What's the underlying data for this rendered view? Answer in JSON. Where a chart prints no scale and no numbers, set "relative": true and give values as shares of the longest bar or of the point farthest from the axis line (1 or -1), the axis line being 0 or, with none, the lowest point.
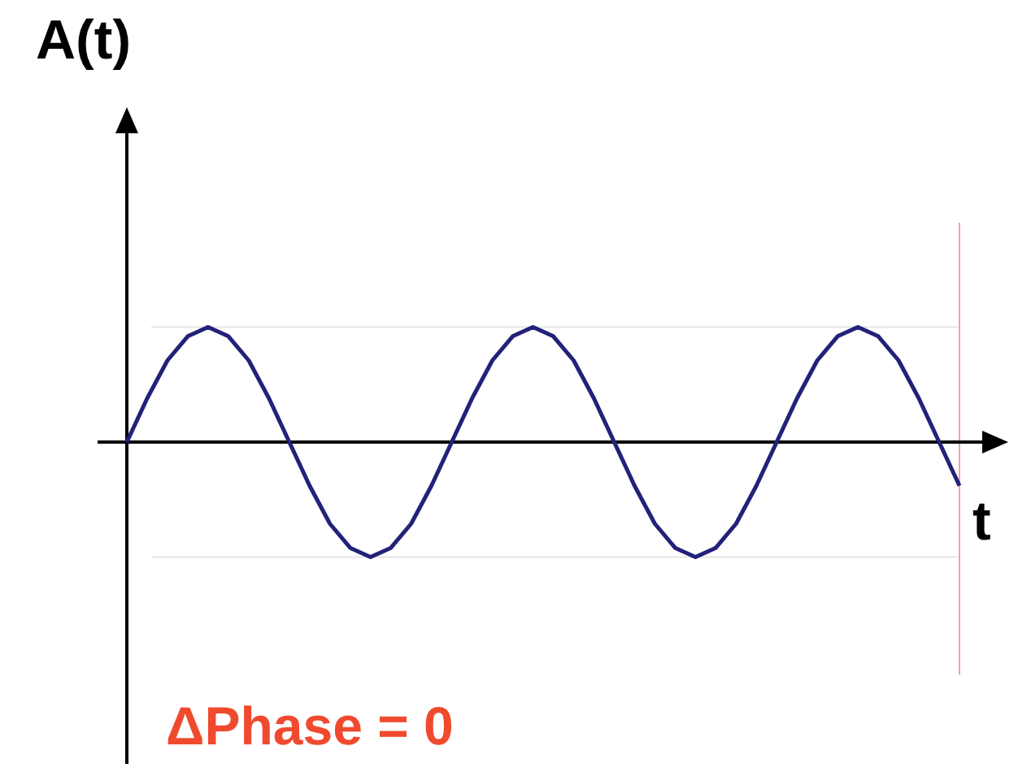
{
  "chart_data": {
    "type": "line",
    "relative": true,
    "xlabel": "t",
    "ylabel": "A(t)",
    "annotations": [
      "ΔPhase = 0"
    ],
    "categories": [
      null,
      null,
      null,
      null,
      null,
      null,
      null,
      null,
      null,
      null,
      null,
      null,
      null,
      null,
      null,
      null,
      null,
      null,
      null,
      null,
      null,
      null,
      null,
      null,
      null,
      null,
      null,
      null,
      null,
      null,
      null,
      null,
      null,
      null,
      null,
      null,
      null,
      null,
      null,
      null,
      null,
      null
    ],
    "series": [
      {
        "color": "#22227a",
        "values": [
          0,
          0.38,
          0.71,
          0.92,
          1,
          0.92,
          0.71,
          0.38,
          0,
          -0.38,
          -0.71,
          -0.92,
          -1,
          -0.92,
          -0.71,
          -0.38,
          0,
          0.38,
          0.71,
          0.92,
          1,
          0.92,
          0.71,
          0.38,
          0,
          -0.38,
          -0.71,
          -0.92,
          -1,
          -0.92,
          -0.71,
          -0.38,
          0,
          0.38,
          0.71,
          0.92,
          1,
          0.92,
          0.71,
          0.38,
          0,
          -0.38
        ]
      }
    ],
    "ref_lines": [
      {
        "axis": "y",
        "value": 1,
        "color": "#e6e6e6"
      },
      {
        "axis": "y",
        "value": -1,
        "color": "#e6e6e6"
      },
      {
        "axis": "x",
        "color": "#f4a0a0"
      }
    ],
    "legend": false,
    "grid": false,
    "tick_labels": false,
    "marker": "none",
    "line_style": "solid"
  }
}
